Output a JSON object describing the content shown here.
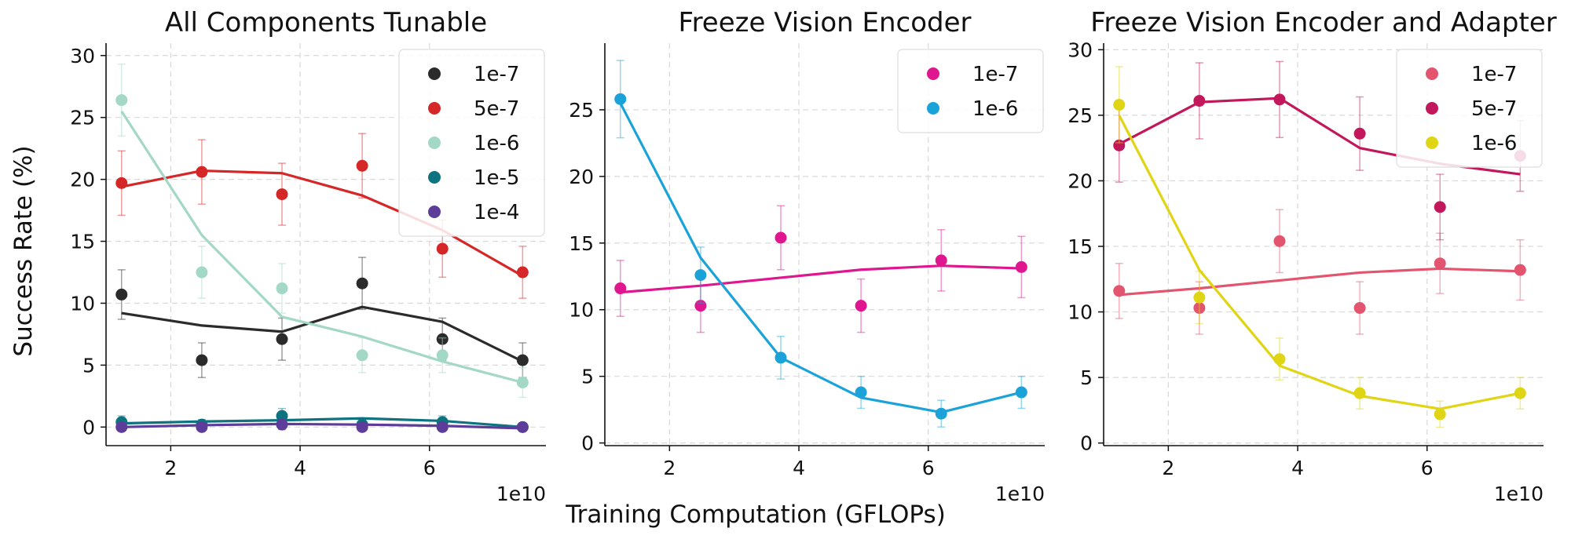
{
  "figure": {
    "ylabel": "Success Rate (%)",
    "xlabel": "Training Computation (GFLOPs)",
    "x_offset": "1e10"
  },
  "chart_data": [
    {
      "type": "line",
      "title": "All Components Tunable",
      "xlim": [
        1.0,
        7.8
      ],
      "ylim": [
        -1.5,
        31
      ],
      "xticks": [
        2,
        4,
        6
      ],
      "yticks": [
        0,
        5,
        10,
        15,
        20,
        25,
        30
      ],
      "grid": true,
      "legend_position": "top-right",
      "x": [
        1.24,
        2.48,
        3.72,
        4.96,
        6.2,
        7.44
      ],
      "series": [
        {
          "name": "1e-7",
          "color": "#2b2b2b",
          "points": [
            10.7,
            5.4,
            7.1,
            11.6,
            7.1,
            5.4
          ],
          "err": [
            2.0,
            1.4,
            1.7,
            2.1,
            1.7,
            1.4
          ],
          "fit": [
            9.2,
            8.2,
            7.7,
            9.7,
            8.5,
            5.3
          ]
        },
        {
          "name": "5e-7",
          "color": "#d62728",
          "points": [
            19.7,
            20.6,
            18.8,
            21.1,
            14.4,
            12.5
          ],
          "err": [
            2.6,
            2.6,
            2.5,
            2.6,
            2.3,
            2.1
          ],
          "fit": [
            19.4,
            20.7,
            20.5,
            18.7,
            15.9,
            12.2
          ]
        },
        {
          "name": "1e-6",
          "color": "#a3d8c6",
          "points": [
            26.4,
            12.5,
            11.2,
            5.8,
            5.8,
            3.6
          ],
          "err": [
            2.9,
            2.1,
            2.0,
            1.4,
            1.4,
            1.2
          ],
          "fit": [
            25.5,
            15.5,
            8.9,
            7.3,
            5.3,
            3.6
          ]
        },
        {
          "name": "1e-5",
          "color": "#0e7380",
          "points": [
            0.4,
            0.2,
            0.9,
            0.2,
            0.4,
            0.0
          ],
          "err": [
            0.5,
            0.4,
            0.6,
            0.4,
            0.5,
            0.3
          ],
          "fit": [
            0.3,
            0.45,
            0.55,
            0.7,
            0.5,
            0.0
          ]
        },
        {
          "name": "1e-4",
          "color": "#5e3c99",
          "points": [
            0.0,
            0.0,
            0.2,
            0.0,
            0.0,
            0.0
          ],
          "err": [
            0.3,
            0.3,
            0.4,
            0.3,
            0.3,
            0.3
          ],
          "fit": [
            0.0,
            0.15,
            0.25,
            0.2,
            0.1,
            -0.1
          ]
        }
      ]
    },
    {
      "type": "line",
      "title": "Freeze Vision Encoder",
      "xlim": [
        1.0,
        7.8
      ],
      "ylim": [
        -0.2,
        30
      ],
      "xticks": [
        2,
        4,
        6
      ],
      "yticks": [
        0,
        5,
        10,
        15,
        20,
        25
      ],
      "grid": true,
      "legend_position": "top-right",
      "x": [
        1.24,
        2.48,
        3.72,
        4.96,
        6.2,
        7.44
      ],
      "series": [
        {
          "name": "1e-7",
          "color": "#e0168f",
          "points": [
            11.6,
            10.3,
            15.4,
            10.3,
            13.7,
            13.2
          ],
          "err": [
            2.1,
            2.0,
            2.4,
            2.0,
            2.3,
            2.3
          ],
          "fit": [
            11.3,
            11.8,
            12.4,
            13.0,
            13.3,
            13.1
          ]
        },
        {
          "name": "1e-6",
          "color": "#1ba3d9",
          "points": [
            25.8,
            12.6,
            6.4,
            3.8,
            2.2,
            3.8
          ],
          "err": [
            2.9,
            2.1,
            1.6,
            1.2,
            1.0,
            1.2
          ],
          "fit": [
            25.5,
            13.9,
            6.4,
            3.4,
            2.3,
            3.8
          ]
        }
      ]
    },
    {
      "type": "line",
      "title": "Freeze Vision Encoder and Adapter",
      "xlim": [
        1.0,
        7.8
      ],
      "ylim": [
        -0.2,
        30.5
      ],
      "xticks": [
        2,
        4,
        6
      ],
      "yticks": [
        0,
        5,
        10,
        15,
        20,
        25,
        30
      ],
      "grid": true,
      "legend_position": "top-right",
      "x": [
        1.24,
        2.48,
        3.72,
        4.96,
        6.2,
        7.44
      ],
      "series": [
        {
          "name": "1e-7",
          "color": "#e3546e",
          "points": [
            11.6,
            10.3,
            15.4,
            10.3,
            13.7,
            13.2
          ],
          "err": [
            2.1,
            2.0,
            2.4,
            2.0,
            2.3,
            2.3
          ],
          "fit": [
            11.3,
            11.8,
            12.4,
            13.0,
            13.3,
            13.1
          ]
        },
        {
          "name": "5e-7",
          "color": "#c2185b",
          "points": [
            22.7,
            26.1,
            26.2,
            23.6,
            18.0,
            21.9
          ],
          "err": [
            2.8,
            2.9,
            2.9,
            2.8,
            2.5,
            2.7
          ],
          "fit": [
            22.8,
            26.0,
            26.3,
            22.5,
            21.3,
            20.5
          ]
        },
        {
          "name": "1e-6",
          "color": "#e0d514",
          "points": [
            25.8,
            11.1,
            6.4,
            3.8,
            2.2,
            3.8
          ],
          "err": [
            2.9,
            2.0,
            1.6,
            1.2,
            1.0,
            1.2
          ],
          "fit": [
            25.0,
            13.2,
            5.9,
            3.6,
            2.6,
            3.8
          ]
        }
      ]
    }
  ]
}
